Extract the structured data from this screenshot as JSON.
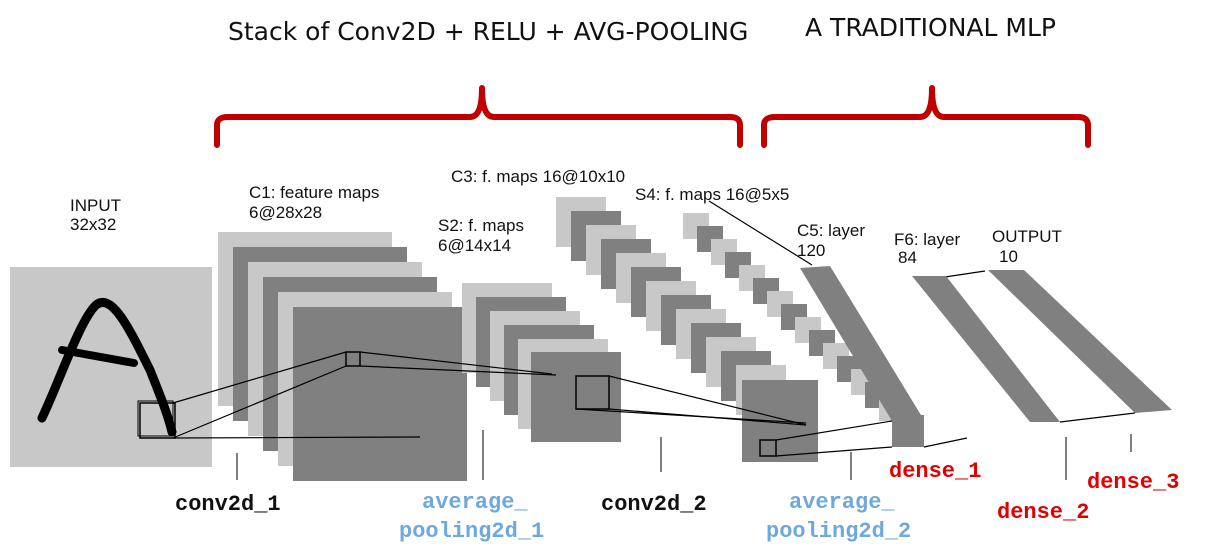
{
  "sections": {
    "conv_stack_title": "Stack of Conv2D + RELU + AVG-POOLING",
    "mlp_title": "A TRADITIONAL MLP"
  },
  "nodes": {
    "input": {
      "line1": "INPUT",
      "line2": "32x32"
    },
    "c1": {
      "line1": "C1: feature maps",
      "line2": "6@28x28"
    },
    "s2": {
      "line1": "S2: f. maps",
      "line2": "6@14x14"
    },
    "c3": {
      "line1": "C3: f. maps 16@10x10"
    },
    "s4": {
      "line1": "S4: f. maps 16@5x5"
    },
    "c5": {
      "line1": "C5: layer",
      "line2": "120"
    },
    "f6": {
      "line1": "F6: layer",
      "line2": "84"
    },
    "output": {
      "line1": "OUTPUT",
      "line2": "10"
    }
  },
  "layers": {
    "conv2d_1": "conv2d_1",
    "avg_pool_1_line1": "average_",
    "avg_pool_1_line2": "pooling2d_1",
    "conv2d_2": "conv2d_2",
    "avg_pool_2_line1": "average_",
    "avg_pool_2_line2": "pooling2d_2",
    "dense_1": "dense_1",
    "dense_2": "dense_2",
    "dense_3": "dense_3"
  },
  "colors": {
    "brace": "#c00000",
    "conv_label": "#111111",
    "pool_label": "#6fa8dc",
    "dense_label": "#e00000",
    "map_light": "#c8c8c8",
    "map_dark": "#808080"
  }
}
